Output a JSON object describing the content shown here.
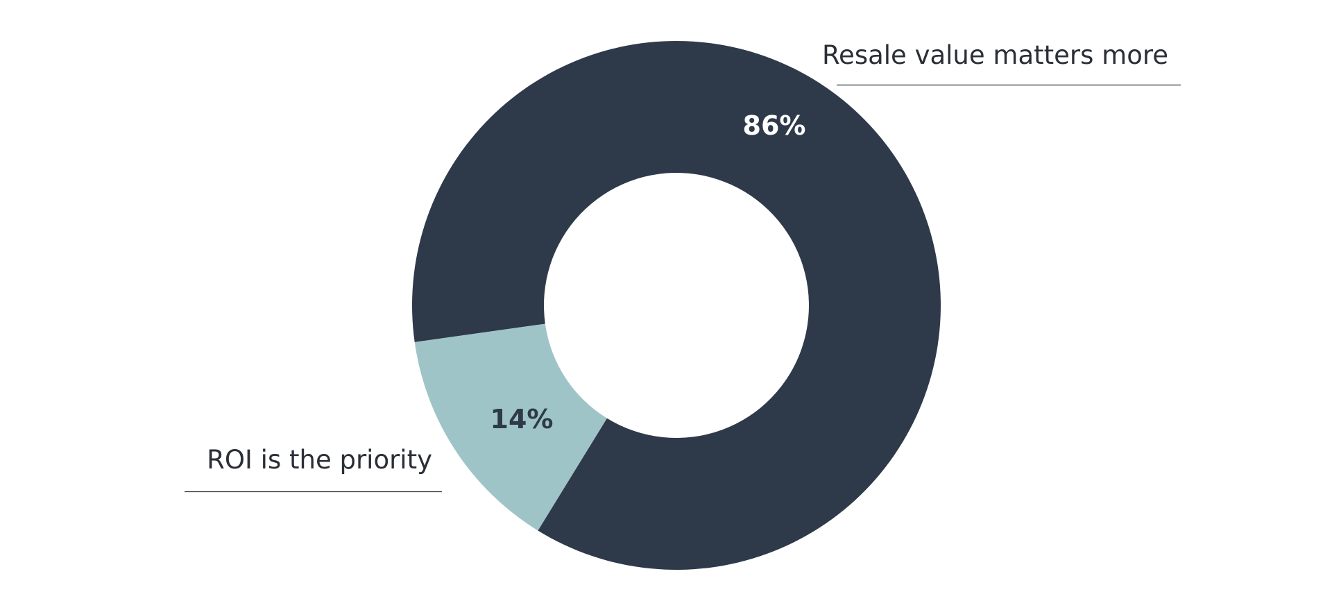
{
  "chart_data": {
    "type": "pie",
    "donut": true,
    "slices": [
      {
        "label": "Resale value matters more",
        "value": 86,
        "value_label": "86%",
        "color": "#2e3a49",
        "text_color": "#ffffff"
      },
      {
        "label": "ROI is the priority",
        "value": 14,
        "value_label": "14%",
        "color": "#9fc4c7",
        "text_color": "#2e3a49"
      }
    ]
  }
}
